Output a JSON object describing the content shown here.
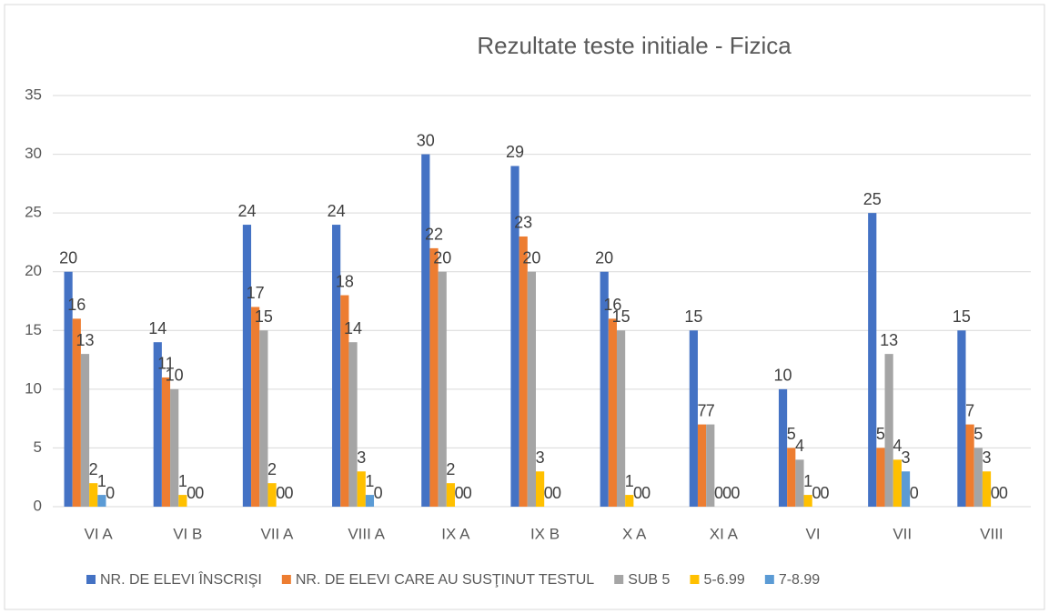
{
  "chart_data": {
    "type": "bar",
    "title": "Rezultate teste initiale - Fizica",
    "categories": [
      "VI A",
      "VI B",
      "VII A",
      "VIII A",
      "IX A",
      "IX B",
      "X A",
      "XI A",
      "VI",
      "VII",
      "VIII"
    ],
    "series": [
      {
        "name": "NR. DE ELEVI ÎNSCRIŞI",
        "color": "#4472c4",
        "values": [
          20,
          14,
          24,
          24,
          30,
          29,
          20,
          15,
          10,
          25,
          15
        ]
      },
      {
        "name": "NR. DE ELEVI CARE AU SUSŢINUT TESTUL",
        "color": "#ed7d31",
        "values": [
          16,
          11,
          17,
          18,
          22,
          23,
          16,
          7,
          5,
          5,
          7
        ]
      },
      {
        "name": "SUB 5",
        "color": "#a5a5a5",
        "values": [
          13,
          10,
          15,
          14,
          20,
          20,
          15,
          7,
          4,
          13,
          5
        ]
      },
      {
        "name": "5-6.99",
        "color": "#ffc000",
        "values": [
          2,
          1,
          2,
          3,
          2,
          3,
          1,
          0,
          1,
          4,
          3
        ]
      },
      {
        "name": "7-8.99",
        "color": "#5b9bd5",
        "values": [
          1,
          0,
          0,
          1,
          0,
          0,
          0,
          0,
          0,
          3,
          0
        ]
      },
      {
        "color": "#70ad47",
        "values": [
          0,
          0,
          0,
          0,
          0,
          0,
          0,
          0,
          0,
          0,
          0
        ]
      }
    ],
    "ylim": [
      0,
      35
    ],
    "yticks": [
      0,
      5,
      10,
      15,
      20,
      25,
      30,
      35
    ],
    "grid": true,
    "legend": "bottom"
  }
}
